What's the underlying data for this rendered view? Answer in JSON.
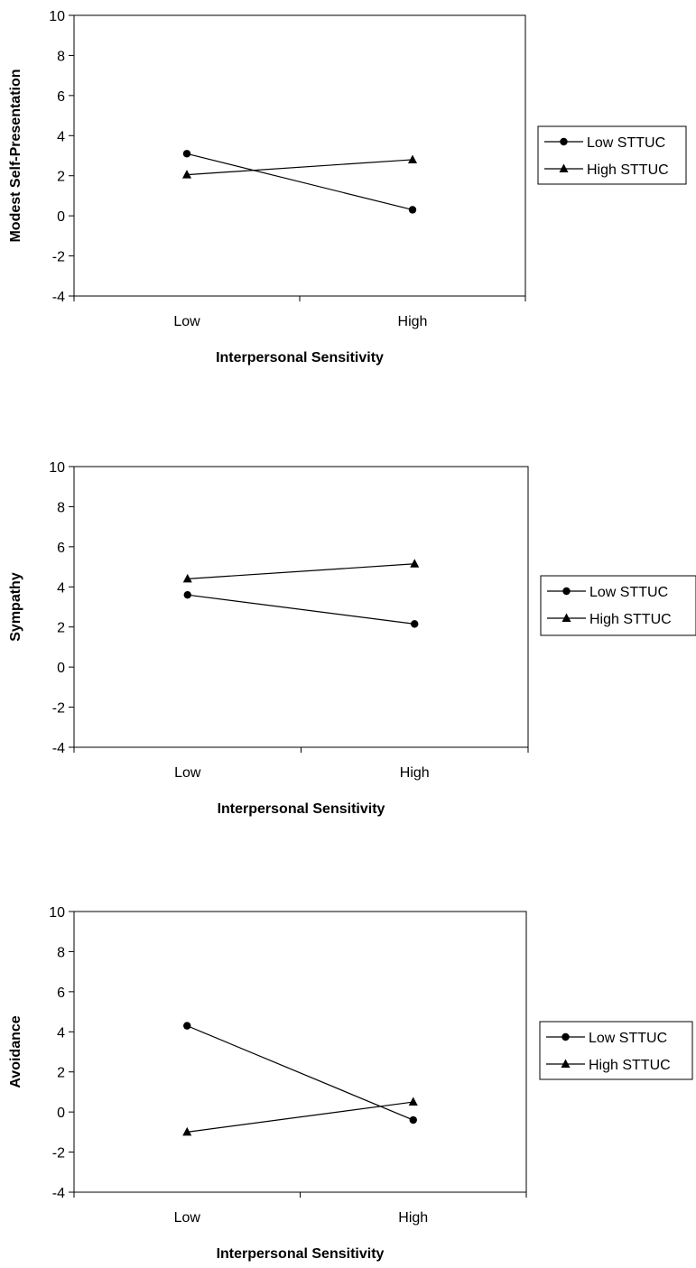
{
  "chart_data": [
    {
      "type": "line",
      "categories": [
        "Low",
        "High"
      ],
      "series": [
        {
          "name": "Low STTUC",
          "marker": "circle",
          "values": [
            3.1,
            0.3
          ]
        },
        {
          "name": "High STTUC",
          "marker": "triangle",
          "values": [
            2.05,
            2.8
          ]
        }
      ],
      "xlabel": "Interpersonal Sensitivity",
      "ylabel": "Modest Self-Presentation",
      "ylim": [
        -4,
        10
      ],
      "yticks": [
        -4,
        -2,
        0,
        2,
        4,
        6,
        8,
        10
      ],
      "grid": false,
      "legend": "right"
    },
    {
      "type": "line",
      "categories": [
        "Low",
        "High"
      ],
      "series": [
        {
          "name": "Low STTUC",
          "marker": "circle",
          "values": [
            3.6,
            2.15
          ]
        },
        {
          "name": "High STTUC",
          "marker": "triangle",
          "values": [
            4.4,
            5.15
          ]
        }
      ],
      "xlabel": "Interpersonal Sensitivity",
      "ylabel": "Sympathy",
      "ylim": [
        -4,
        10
      ],
      "yticks": [
        -4,
        -2,
        0,
        2,
        4,
        6,
        8,
        10
      ],
      "grid": false,
      "legend": "right"
    },
    {
      "type": "line",
      "categories": [
        "Low",
        "High"
      ],
      "series": [
        {
          "name": "Low STTUC",
          "marker": "circle",
          "values": [
            4.3,
            -0.4
          ]
        },
        {
          "name": "High STTUC",
          "marker": "triangle",
          "values": [
            -1.0,
            0.5
          ]
        }
      ],
      "xlabel": "Interpersonal Sensitivity",
      "ylabel": "Avoidance",
      "ylim": [
        -4,
        10
      ],
      "yticks": [
        -4,
        -2,
        0,
        2,
        4,
        6,
        8,
        10
      ],
      "grid": false,
      "legend": "right"
    }
  ]
}
